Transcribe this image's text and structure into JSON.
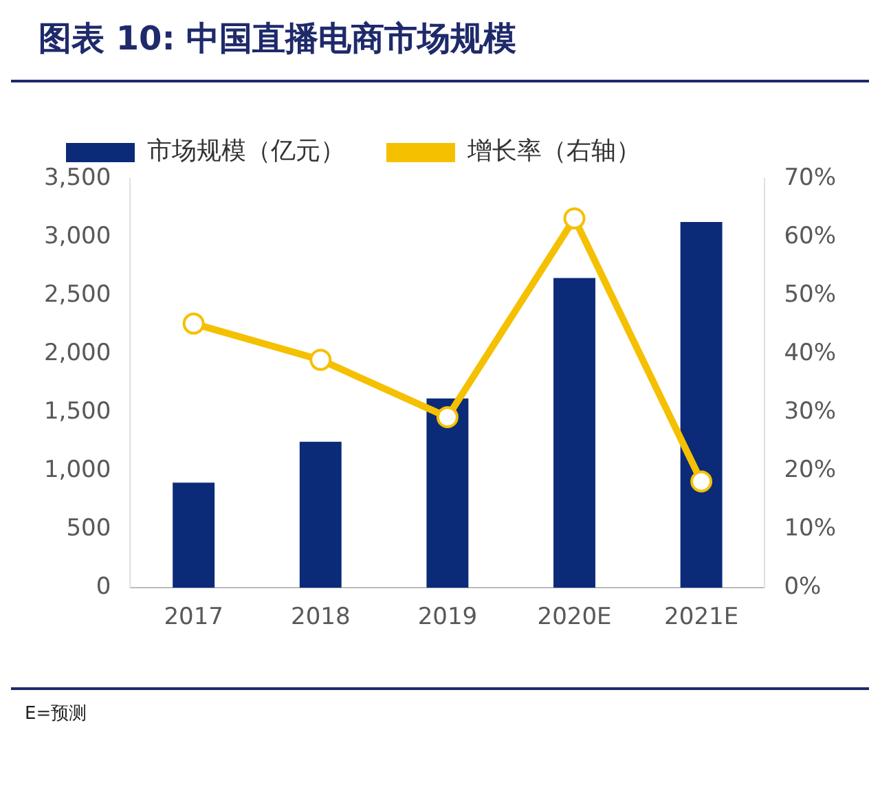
{
  "chart_data": {
    "type": "bar",
    "title": "图表 10: 中国直播电商市场规模",
    "categories": [
      "2017",
      "2018",
      "2019",
      "2020E",
      "2021E"
    ],
    "series": [
      {
        "name": "市场规模（亿元）",
        "color": "#0b2a78",
        "values": [
          900,
          1250,
          1620,
          2650,
          3130
        ]
      },
      {
        "name": "增长率（右轴）",
        "type": "line",
        "axis": "y2",
        "color": "#f5c000",
        "values": [
          45.2,
          39,
          29.2,
          63.2,
          18.2
        ]
      }
    ],
    "ylim": [
      0,
      3500
    ],
    "yticks": [
      {
        "value": 0,
        "label": "0"
      },
      {
        "value": 500,
        "label": "500"
      },
      {
        "value": 1000,
        "label": "1,000"
      },
      {
        "value": 1500,
        "label": "1,500"
      },
      {
        "value": 2000,
        "label": "2,000"
      },
      {
        "value": 2500,
        "label": "2,500"
      },
      {
        "value": 3000,
        "label": "3,000"
      },
      {
        "value": 3500,
        "label": "3,500"
      }
    ],
    "y2lim": [
      0,
      70
    ],
    "y2ticks": [
      {
        "value": 0,
        "label": "0%"
      },
      {
        "value": 10,
        "label": "10%"
      },
      {
        "value": 20,
        "label": "20%"
      },
      {
        "value": 30,
        "label": "30%"
      },
      {
        "value": 40,
        "label": "40%"
      },
      {
        "value": 50,
        "label": "50%"
      },
      {
        "value": 60,
        "label": "60%"
      },
      {
        "value": 70,
        "label": "70%"
      }
    ],
    "legend": "top",
    "grid": false,
    "marker": "circle",
    "annotations": [
      "E=预测"
    ]
  }
}
